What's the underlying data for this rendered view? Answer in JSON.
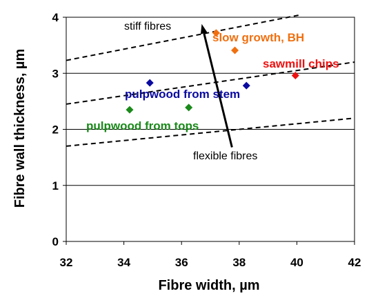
{
  "chart_data": {
    "type": "scatter",
    "title": "",
    "xlabel": "Fibre width, µm",
    "ylabel": "Fibre wall thickness, µm",
    "xlim": [
      32,
      42
    ],
    "ylim": [
      0,
      4
    ],
    "xticks": [
      "32",
      "34",
      "36",
      "38",
      "40",
      "42"
    ],
    "yticks": [
      "0",
      "1",
      "2",
      "3",
      "4"
    ],
    "grid": "horizontal",
    "series": [
      {
        "name": "pulpwood from tops",
        "color": "#1a8a1a",
        "points": [
          [
            34.2,
            2.35
          ],
          [
            36.25,
            2.39
          ]
        ]
      },
      {
        "name": "pulpwood from stem",
        "color": "#0a0aa0",
        "points": [
          [
            34.9,
            2.83
          ],
          [
            38.25,
            2.78
          ]
        ]
      },
      {
        "name": "slow growth, BH",
        "color": "#f07010",
        "points": [
          [
            37.2,
            3.72
          ],
          [
            37.85,
            3.41
          ]
        ]
      },
      {
        "name": "sawmill chips",
        "color": "#ee1111",
        "points": [
          [
            39.95,
            2.96
          ]
        ]
      }
    ],
    "dashed_lines": [
      [
        [
          32,
          3.23
        ],
        [
          40.1,
          4.04
        ]
      ],
      [
        [
          32,
          2.45
        ],
        [
          42,
          3.2
        ]
      ],
      [
        [
          32,
          1.7
        ],
        [
          42,
          2.2
        ]
      ]
    ],
    "labels": [
      {
        "text": "pulpwood from tops",
        "series": 0
      },
      {
        "text": "pulpwood from stem",
        "series": 1
      },
      {
        "text": "slow growth, BH",
        "series": 2
      },
      {
        "text": "sawmill chips",
        "series": 3
      }
    ],
    "annotations": {
      "stiff": "stiff fibres",
      "flexible": "flexible fibres",
      "arrow_from": [
        37.75,
        1.68
      ],
      "arrow_to": [
        36.7,
        3.88
      ]
    }
  }
}
